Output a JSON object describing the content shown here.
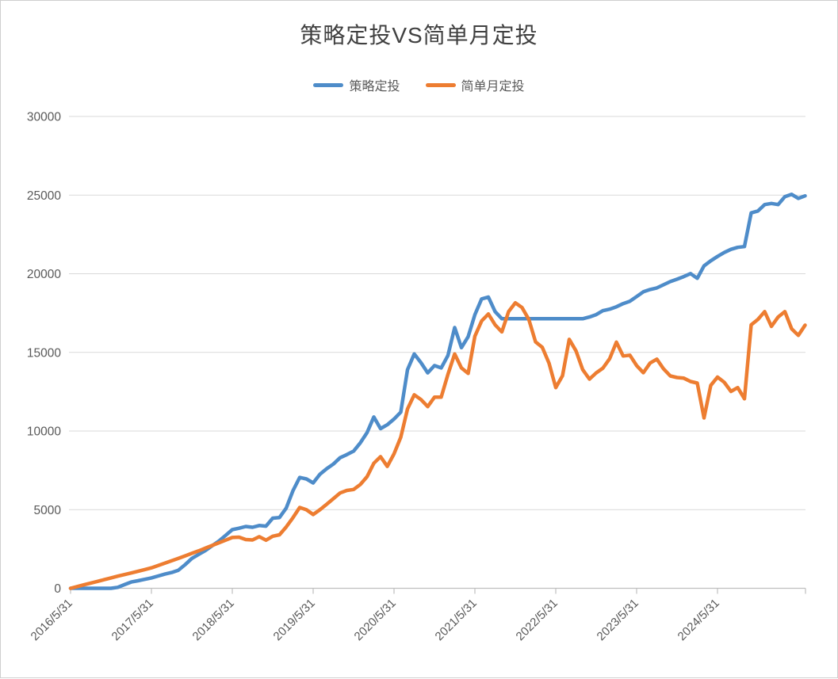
{
  "title": "策略定投VS简单月定投",
  "legend": {
    "items": [
      {
        "label": "策略定投",
        "color": "#4E8CC9"
      },
      {
        "label": "简单月定投",
        "color": "#ED7D31"
      }
    ]
  },
  "colors": {
    "gridline": "#D9D9D9",
    "axis": "#BFBFBF",
    "tick": "#BFBFBF",
    "axis_label": "#595959",
    "title": "#404040",
    "background": "#FFFFFF"
  },
  "y_axis": {
    "tick_labels": [
      "0",
      "5000",
      "10000",
      "15000",
      "20000",
      "25000",
      "30000"
    ]
  },
  "x_axis": {
    "tick_labels": [
      "2016/5/31",
      "2017/5/31",
      "2018/5/31",
      "2019/5/31",
      "2020/5/31",
      "2021/5/31",
      "2022/5/31",
      "2023/5/31",
      "2024/5/31"
    ]
  },
  "chart_data": {
    "type": "line",
    "title": "策略定投VS简单月定投",
    "xlabel": "",
    "ylabel": "",
    "ylim": [
      0,
      30000
    ],
    "grid": "horizontal",
    "legend_position": "top-center",
    "x_start": "2016/5/31",
    "x_interval": "monthly",
    "x_tick_labels": [
      "2016/5/31",
      "2017/5/31",
      "2018/5/31",
      "2019/5/31",
      "2020/5/31",
      "2021/5/31",
      "2022/5/31",
      "2023/5/31",
      "2024/5/31"
    ],
    "y_ticks": [
      0,
      5000,
      10000,
      15000,
      20000,
      25000,
      30000
    ],
    "series": [
      {
        "name": "策略定投",
        "color": "#4E8CC9",
        "values": [
          0,
          0,
          0,
          0,
          0,
          0,
          0,
          60,
          230,
          400,
          480,
          570,
          660,
          780,
          900,
          1000,
          1150,
          1500,
          1900,
          2150,
          2400,
          2700,
          3000,
          3360,
          3730,
          3820,
          3930,
          3880,
          3990,
          3950,
          4460,
          4500,
          5100,
          6200,
          7050,
          6950,
          6700,
          7250,
          7600,
          7900,
          8300,
          8500,
          8720,
          9250,
          9900,
          10890,
          10150,
          10400,
          10760,
          11200,
          13900,
          14900,
          14350,
          13700,
          14160,
          14010,
          14800,
          16580,
          15300,
          16000,
          17400,
          18400,
          18520,
          17590,
          17140,
          17140,
          17140,
          17140,
          17140,
          17140,
          17140,
          17140,
          17140,
          17140,
          17140,
          17140,
          17140,
          17250,
          17400,
          17650,
          17750,
          17900,
          18100,
          18250,
          18550,
          18850,
          19000,
          19100,
          19300,
          19500,
          19650,
          19820,
          20010,
          19710,
          20500,
          20820,
          21100,
          21350,
          21550,
          21680,
          21730,
          23870,
          23990,
          24400,
          24470,
          24400,
          24900,
          25050,
          24790,
          24950
        ]
      },
      {
        "name": "简单月定投",
        "color": "#ED7D31",
        "values": [
          0,
          110,
          220,
          330,
          440,
          550,
          660,
          770,
          870,
          970,
          1080,
          1190,
          1300,
          1450,
          1600,
          1750,
          1900,
          2060,
          2220,
          2380,
          2550,
          2720,
          2890,
          3060,
          3230,
          3250,
          3100,
          3075,
          3280,
          3060,
          3310,
          3400,
          3900,
          4490,
          5140,
          4990,
          4690,
          4990,
          5340,
          5700,
          6060,
          6220,
          6280,
          6600,
          7100,
          7950,
          8370,
          7750,
          8550,
          9600,
          11400,
          12300,
          12000,
          11550,
          12150,
          12150,
          13600,
          14900,
          14010,
          13660,
          16030,
          17000,
          17440,
          16750,
          16300,
          17590,
          18150,
          17850,
          17100,
          15670,
          15320,
          14310,
          12760,
          13510,
          15830,
          15100,
          13900,
          13300,
          13700,
          14000,
          14600,
          15650,
          14770,
          14820,
          14160,
          13710,
          14320,
          14570,
          13950,
          13500,
          13400,
          13360,
          13150,
          13050,
          10830,
          12900,
          13430,
          13100,
          12520,
          12760,
          12050,
          16750,
          17100,
          17590,
          16650,
          17250,
          17590,
          16500,
          16080,
          16730
        ]
      }
    ]
  }
}
